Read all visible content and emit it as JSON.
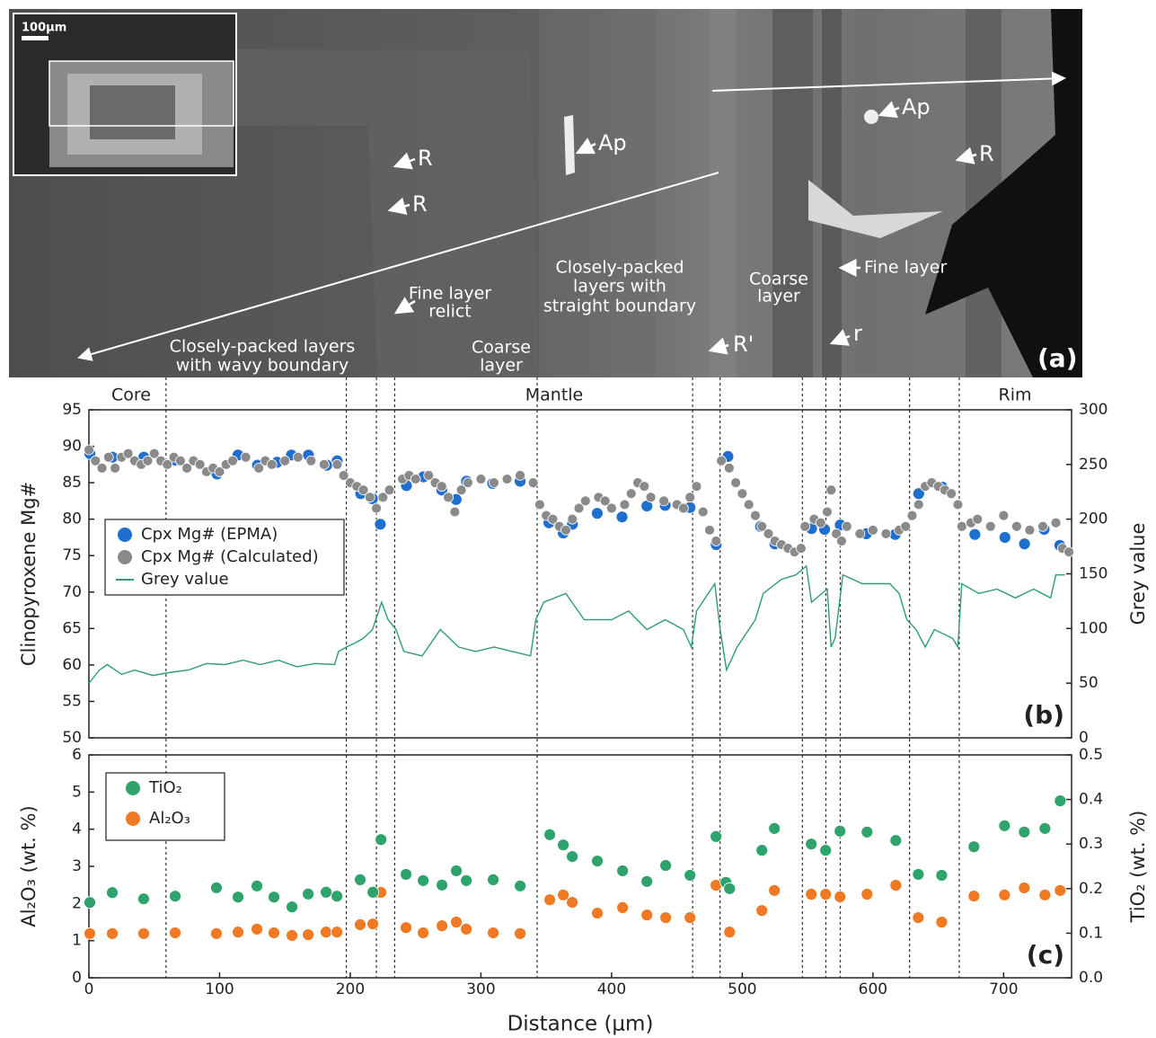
{
  "image": {
    "annotations": [
      [
        "100μm"
      ],
      [
        "R"
      ],
      [
        "R"
      ],
      [
        "Ap"
      ],
      [
        "Ap"
      ],
      [
        "R"
      ],
      [
        "Fine layer",
        "relict"
      ],
      [
        "Closely-packed",
        "layers with",
        "straight boundary"
      ],
      [
        "Coarse",
        "layer"
      ],
      [
        "Fine layer"
      ],
      [
        "Closely-packed layers",
        "with wavy boundary"
      ],
      [
        "Coarse",
        "layer"
      ],
      [
        "R'"
      ],
      [
        "r"
      ],
      [
        "(a)"
      ]
    ]
  },
  "chart_data": [
    {
      "type": "combo",
      "panel_label": "(b)",
      "y_label": "Clinopyroxene Mg#",
      "y2_label": "Grey value",
      "zones": [
        "Core",
        "Mantle",
        "Rim"
      ],
      "dividers": [
        59,
        197,
        220,
        234,
        343,
        462,
        483,
        546,
        564,
        575,
        628,
        666
      ],
      "xlim": [
        0,
        752
      ],
      "ylim": [
        50,
        95
      ],
      "yticks": [
        50,
        55,
        60,
        65,
        70,
        75,
        80,
        85,
        90,
        95
      ],
      "y2lim": [
        0,
        300
      ],
      "y2ticks": [
        0,
        50,
        100,
        150,
        200,
        250,
        300
      ],
      "series": [
        {
          "name": "Cpx Mg# (Calculated)",
          "type": "scatter",
          "color": "#8a8a8a",
          "x": [
            0,
            5,
            10,
            15,
            20,
            25,
            30,
            35,
            40,
            45,
            50,
            55,
            60,
            65,
            70,
            75,
            80,
            85,
            90,
            95,
            100,
            105,
            110,
            120,
            130,
            135,
            140,
            150,
            160,
            170,
            180,
            190,
            195,
            200,
            205,
            210,
            215,
            220,
            225,
            230,
            240,
            245,
            250,
            260,
            265,
            270,
            275,
            280,
            285,
            290,
            300,
            310,
            320,
            330,
            340,
            345,
            350,
            355,
            360,
            365,
            370,
            375,
            380,
            390,
            395,
            400,
            410,
            415,
            420,
            425,
            430,
            440,
            450,
            455,
            460,
            465,
            470,
            475,
            480,
            484,
            490,
            495,
            500,
            505,
            510,
            515,
            520,
            525,
            530,
            535,
            540,
            545,
            548,
            555,
            560,
            565,
            568,
            572,
            576,
            580,
            590,
            600,
            610,
            620,
            625,
            630,
            635,
            640,
            645,
            650,
            655,
            660,
            665,
            668,
            675,
            680,
            690,
            700,
            710,
            720,
            730,
            740,
            745,
            750
          ],
          "values": [
            89.5,
            88,
            87,
            88.5,
            87,
            88.5,
            89,
            88,
            87.5,
            88,
            89,
            88,
            87.5,
            88.5,
            88,
            87,
            88,
            87.5,
            86.5,
            87,
            86.5,
            87.5,
            88,
            88.5,
            87,
            88,
            87.5,
            88,
            88.5,
            88,
            87.5,
            87.5,
            86,
            85,
            84.5,
            84,
            83,
            81.5,
            83,
            84,
            85.5,
            86,
            85.5,
            86,
            85,
            84.5,
            83,
            81,
            84,
            85,
            85.5,
            85,
            85.5,
            86,
            85,
            82,
            80.5,
            80,
            79,
            78.5,
            80,
            81.5,
            82.5,
            83,
            82.5,
            81.5,
            82,
            83.5,
            85,
            84.5,
            83,
            82.5,
            82,
            81.5,
            83,
            84.5,
            81,
            78.5,
            77,
            88,
            87,
            85,
            83.5,
            82,
            80.5,
            79,
            78,
            77,
            76.5,
            76,
            75.5,
            76,
            79,
            80,
            79.5,
            81,
            84,
            78,
            77,
            79,
            78,
            78.5,
            78,
            78.5,
            79,
            80.5,
            82,
            84.5,
            85,
            84.5,
            84,
            83.5,
            82,
            79,
            79.5,
            80,
            79,
            80.5,
            79,
            78.5,
            79,
            79.5,
            76,
            75.5
          ]
        },
        {
          "name": "Cpx Mg# (EPMA)",
          "type": "scatter",
          "color": "#1f6fd1",
          "x": [
            0.7,
            18,
            42,
            66,
            98,
            114,
            129,
            144,
            155,
            168,
            182,
            190,
            208,
            217,
            223,
            243,
            256,
            270,
            281,
            289,
            309,
            330,
            352,
            363,
            370,
            389,
            408,
            427,
            441,
            460,
            480,
            489,
            514,
            525,
            553,
            563,
            575,
            595,
            617,
            635,
            653,
            678,
            701,
            716,
            731,
            743
          ],
          "values": [
            89.0,
            88.5,
            88.5,
            88.1,
            86.2,
            88.8,
            87.4,
            87.8,
            88.8,
            88.8,
            87.4,
            88.0,
            83.5,
            82.8,
            79.3,
            84.6,
            85.8,
            84.0,
            82.7,
            85.2,
            84.9,
            85.2,
            79.5,
            78.1,
            79.3,
            80.8,
            80.3,
            81.8,
            81.9,
            81.6,
            76.5,
            88.6,
            79.0,
            76.6,
            78.7,
            78.6,
            79.2,
            78.0,
            77.9,
            83.5,
            84.4,
            77.9,
            77.5,
            76.6,
            78.6,
            76.4
          ]
        },
        {
          "name": "Grey value",
          "type": "line",
          "axis": "y2",
          "color": "#2e9e6e",
          "x": [
            0,
            8,
            14,
            25,
            35,
            49,
            63,
            76,
            90,
            104,
            118,
            131,
            145,
            159,
            173,
            188,
            191,
            197,
            204,
            210,
            217,
            224,
            229,
            235,
            241,
            255,
            269,
            283,
            296,
            310,
            324,
            338,
            342,
            348,
            365,
            379,
            400,
            413,
            427,
            441,
            455,
            461,
            465,
            479,
            483,
            488,
            496,
            510,
            516,
            530,
            541,
            549,
            553,
            561,
            565,
            568,
            571,
            577,
            592,
            613,
            620,
            626,
            633,
            640,
            647,
            661,
            665,
            668,
            681,
            695,
            709,
            723,
            736,
            740,
            747
          ],
          "values": [
            50,
            62,
            67,
            58,
            62,
            57,
            60,
            62,
            68,
            67,
            71,
            67,
            71,
            65,
            68,
            67,
            79,
            83,
            87,
            91,
            99,
            124,
            108,
            99,
            79,
            75,
            99,
            83,
            79,
            83,
            79,
            75,
            108,
            124,
            132,
            108,
            108,
            116,
            99,
            108,
            99,
            83,
            116,
            141,
            99,
            62,
            83,
            108,
            132,
            145,
            149,
            157,
            124,
            132,
            136,
            83,
            91,
            149,
            141,
            141,
            132,
            108,
            99,
            83,
            99,
            91,
            83,
            141,
            132,
            136,
            128,
            136,
            128,
            149,
            149
          ]
        }
      ]
    },
    {
      "type": "scatter",
      "panel_label": "(c)",
      "x_label": "Distance (μm)",
      "y_label": "Al₂O₃ (wt. %)",
      "y2_label": "TiO₂ (wt. %)",
      "xlim": [
        0,
        752
      ],
      "xticks": [
        0,
        100,
        200,
        300,
        400,
        500,
        600,
        700
      ],
      "ylim": [
        0,
        6
      ],
      "yticks": [
        0,
        1,
        2,
        3,
        4,
        5,
        6
      ],
      "y2lim": [
        0,
        0.5
      ],
      "y2ticks": [
        {
          "value": 0,
          "label": "0.0"
        },
        0.1,
        0.2,
        0.3,
        0.4,
        0.5
      ],
      "series": [
        {
          "name": "TiO₂",
          "axis": "y2",
          "color": "#2ea36b",
          "x": [
            0.7,
            17.9,
            41.9,
            66,
            97.6,
            114.1,
            128.6,
            141.6,
            155.4,
            167.8,
            181.5,
            189.8,
            207.6,
            217.3,
            223.5,
            242.7,
            255.8,
            270.2,
            281.2,
            288.8,
            309.4,
            330,
            352.7,
            363,
            369.9,
            389.1,
            408.4,
            427,
            441.4,
            460,
            479.9,
            487.5,
            490.3,
            515,
            524.6,
            552.8,
            563.8,
            574.8,
            595.5,
            617.5,
            634.7,
            652.6,
            677.3,
            700.7,
            715.8,
            731.6,
            743.3
          ],
          "values": [
            0.169,
            0.191,
            0.177,
            0.183,
            0.202,
            0.181,
            0.206,
            0.181,
            0.159,
            0.188,
            0.192,
            0.183,
            0.22,
            0.192,
            0.31,
            0.232,
            0.218,
            0.208,
            0.24,
            0.218,
            0.22,
            0.206,
            0.321,
            0.298,
            0.272,
            0.262,
            0.24,
            0.216,
            0.252,
            0.23,
            0.317,
            0.214,
            0.2,
            0.286,
            0.335,
            0.3,
            0.286,
            0.329,
            0.327,
            0.308,
            0.232,
            0.23,
            0.294,
            0.341,
            0.327,
            0.335,
            0.397
          ]
        },
        {
          "name": "Al₂O₃",
          "color": "#f07a24",
          "x": [
            0.7,
            17.9,
            41.9,
            66,
            97.6,
            114.1,
            128.6,
            141.6,
            155.4,
            167.8,
            181.5,
            189.8,
            207.6,
            217.3,
            223.5,
            242.7,
            255.8,
            270.2,
            281.2,
            288.8,
            309.4,
            330,
            352.7,
            363,
            369.9,
            389.1,
            408.4,
            427,
            441.4,
            460,
            479.9,
            490.3,
            515,
            524.6,
            552.8,
            563.8,
            574.8,
            595.5,
            617.5,
            634.7,
            652.6,
            677.3,
            700.7,
            715.8,
            731.6,
            743.3
          ],
          "values": [
            1.19,
            1.19,
            1.19,
            1.21,
            1.19,
            1.23,
            1.31,
            1.21,
            1.14,
            1.16,
            1.23,
            1.23,
            1.43,
            1.45,
            2.3,
            1.35,
            1.21,
            1.4,
            1.5,
            1.31,
            1.21,
            1.19,
            2.1,
            2.23,
            2.03,
            1.74,
            1.89,
            1.69,
            1.62,
            1.62,
            2.49,
            1.23,
            1.81,
            2.35,
            2.25,
            2.25,
            2.18,
            2.25,
            2.49,
            1.62,
            1.5,
            2.2,
            2.23,
            2.42,
            2.23,
            2.35
          ]
        }
      ]
    }
  ]
}
